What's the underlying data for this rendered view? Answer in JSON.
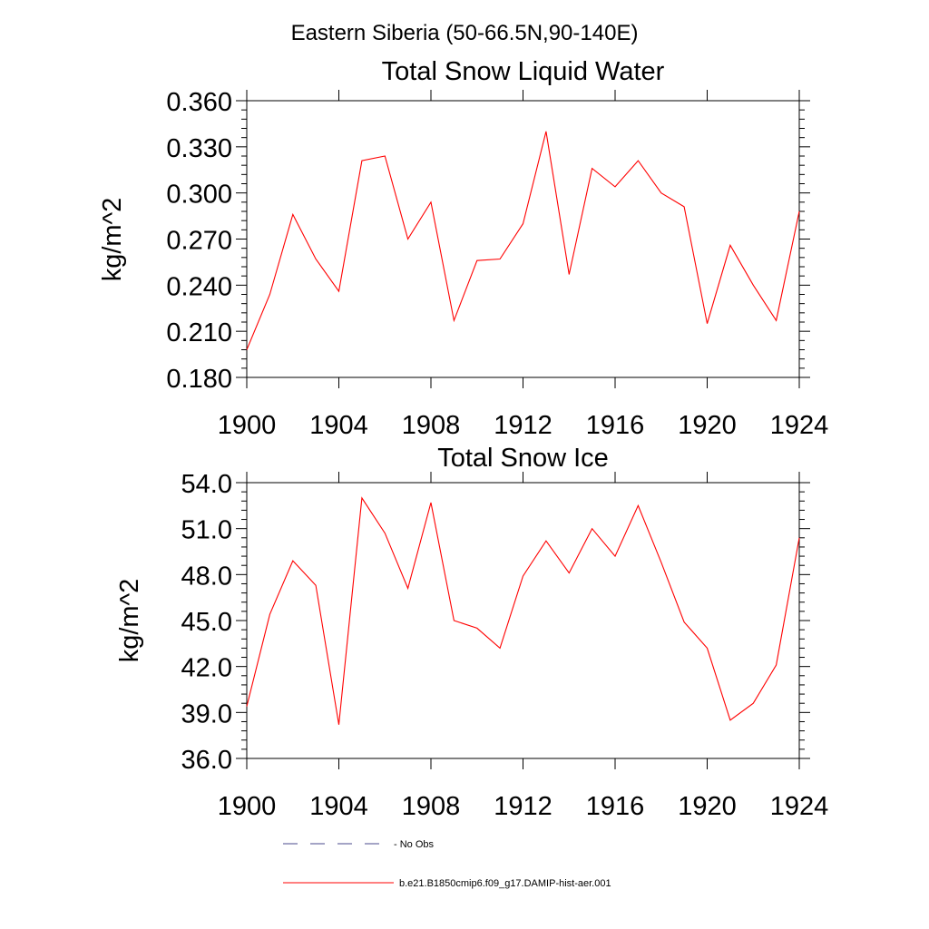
{
  "figure": {
    "suptitle": "Eastern Siberia (50-66.5N,90-140E)"
  },
  "chart_data": [
    {
      "type": "line",
      "title": "Total Snow Liquid Water",
      "ylabel": "kg/m^2",
      "xlabel": "",
      "xlim": [
        1900,
        1924
      ],
      "ylim": [
        0.18,
        0.36
      ],
      "x_ticks": [
        "1900",
        "1904",
        "1908",
        "1912",
        "1916",
        "1920",
        "1924"
      ],
      "y_ticks": [
        "0.180",
        "0.210",
        "0.240",
        "0.270",
        "0.300",
        "0.330",
        "0.360"
      ],
      "x": [
        1900,
        1901,
        1902,
        1903,
        1904,
        1905,
        1906,
        1907,
        1908,
        1909,
        1910,
        1911,
        1912,
        1913,
        1914,
        1915,
        1916,
        1917,
        1918,
        1919,
        1920,
        1921,
        1922,
        1923,
        1924
      ],
      "series": [
        {
          "name": "b.e21.B1850cmip6.f09_g17.DAMIP-hist-aer.001",
          "color": "#ff0000",
          "values": [
            0.198,
            0.234,
            0.286,
            0.257,
            0.236,
            0.321,
            0.324,
            0.27,
            0.294,
            0.217,
            0.256,
            0.257,
            0.28,
            0.34,
            0.247,
            0.316,
            0.304,
            0.321,
            0.3,
            0.291,
            0.215,
            0.266,
            0.24,
            0.217,
            0.288
          ]
        }
      ],
      "grid": false
    },
    {
      "type": "line",
      "title": "Total Snow Ice",
      "ylabel": "kg/m^2",
      "xlabel": "",
      "xlim": [
        1900,
        1924
      ],
      "ylim": [
        36.0,
        54.0
      ],
      "x_ticks": [
        "1900",
        "1904",
        "1908",
        "1912",
        "1916",
        "1920",
        "1924"
      ],
      "y_ticks": [
        "36.0",
        "39.0",
        "42.0",
        "45.0",
        "48.0",
        "51.0",
        "54.0"
      ],
      "x": [
        1900,
        1901,
        1902,
        1903,
        1904,
        1905,
        1906,
        1907,
        1908,
        1909,
        1910,
        1911,
        1912,
        1913,
        1914,
        1915,
        1916,
        1917,
        1918,
        1919,
        1920,
        1921,
        1922,
        1923,
        1924
      ],
      "series": [
        {
          "name": "b.e21.B1850cmip6.f09_g17.DAMIP-hist-aer.001",
          "color": "#ff0000",
          "values": [
            39.4,
            45.4,
            48.9,
            47.3,
            38.2,
            53.0,
            50.7,
            47.1,
            52.7,
            45.0,
            44.5,
            43.2,
            47.9,
            50.2,
            48.1,
            51.0,
            49.2,
            52.5,
            48.8,
            44.9,
            43.2,
            38.5,
            39.6,
            42.1,
            50.4
          ]
        }
      ],
      "grid": false
    }
  ],
  "legend": {
    "placement": "bottom",
    "items": [
      {
        "label": "No Obs",
        "color": "#4a4a8c",
        "style": "dashed"
      },
      {
        "label": "b.e21.B1850cmip6.f09_g17.DAMIP-hist-aer.001",
        "color": "#ff0000",
        "style": "solid"
      }
    ]
  }
}
